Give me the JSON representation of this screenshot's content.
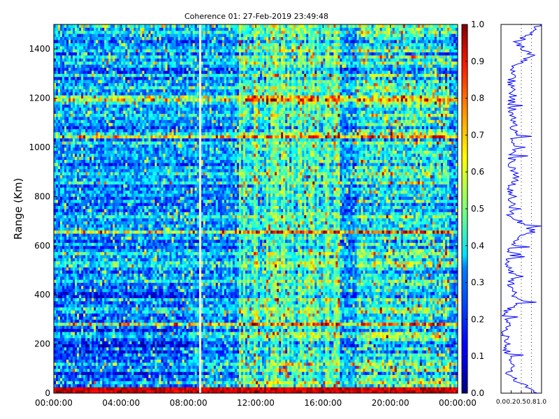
{
  "chart_data": [
    {
      "type": "heatmap",
      "title": "Coherence 01: 27-Feb-2019 23:49:48",
      "xlabel": "",
      "ylabel": "Range (Km)",
      "x_tick_labels": [
        "00:00:00",
        "04:00:00",
        "08:00:00",
        "12:00:00",
        "16:00:00",
        "20:00:00",
        "00:00:00"
      ],
      "x_tick_hours": [
        0,
        4,
        8,
        12,
        16,
        20,
        24
      ],
      "xlim_hours": [
        0,
        24
      ],
      "y_ticks": [
        0,
        200,
        400,
        600,
        800,
        1000,
        1200,
        1400
      ],
      "ylim": [
        0,
        1500
      ],
      "colormap": "jet",
      "colorbar": {
        "ticks": [
          0.0,
          0.1,
          0.2,
          0.3,
          0.4,
          0.5,
          0.6,
          0.7,
          0.8,
          0.9,
          1.0
        ],
        "tick_labels": [
          "0.0",
          "0.1",
          "0.2",
          "0.3",
          "0.4",
          "0.5",
          "0.6",
          "0.7",
          "0.8",
          "0.9",
          "1.0"
        ],
        "range": [
          0.0,
          1.0
        ]
      },
      "data_gap_hour": 8.7,
      "high_coherence_range_km": [
        0,
        25
      ],
      "high_coherence_band_km": [
        280,
        660,
        1040,
        1200
      ],
      "grid": false
    },
    {
      "type": "line",
      "title": "",
      "xlabel": "",
      "ylabel": "",
      "x_tick_labels": [
        "0.0",
        "0.2",
        "0.5",
        "0.8",
        "1.0"
      ],
      "x_ticks": [
        0.0,
        0.25,
        0.5,
        0.75,
        1.0
      ],
      "xlim": [
        0.0,
        1.0
      ],
      "ylim": [
        0,
        1500
      ],
      "color": "#0000ff",
      "dotted_gridlines_x": [
        0.5,
        0.75
      ],
      "profile": [
        {
          "range_km": 0,
          "coherence": 0.95
        },
        {
          "range_km": 25,
          "coherence": 0.6
        },
        {
          "range_km": 75,
          "coherence": 0.2
        },
        {
          "range_km": 125,
          "coherence": 0.3
        },
        {
          "range_km": 175,
          "coherence": 0.15
        },
        {
          "range_km": 225,
          "coherence": 0.1
        },
        {
          "range_km": 275,
          "coherence": 0.15
        },
        {
          "range_km": 325,
          "coherence": 0.1
        },
        {
          "range_km": 375,
          "coherence": 0.45
        },
        {
          "range_km": 425,
          "coherence": 0.25
        },
        {
          "range_km": 475,
          "coherence": 0.3
        },
        {
          "range_km": 525,
          "coherence": 0.2
        },
        {
          "range_km": 575,
          "coherence": 0.25
        },
        {
          "range_km": 625,
          "coherence": 0.35
        },
        {
          "range_km": 660,
          "coherence": 0.8
        },
        {
          "range_km": 725,
          "coherence": 0.2
        },
        {
          "range_km": 775,
          "coherence": 0.3
        },
        {
          "range_km": 825,
          "coherence": 0.25
        },
        {
          "range_km": 875,
          "coherence": 0.35
        },
        {
          "range_km": 925,
          "coherence": 0.25
        },
        {
          "range_km": 975,
          "coherence": 0.3
        },
        {
          "range_km": 1025,
          "coherence": 0.35
        },
        {
          "range_km": 1075,
          "coherence": 0.3
        },
        {
          "range_km": 1125,
          "coherence": 0.3
        },
        {
          "range_km": 1175,
          "coherence": 0.25
        },
        {
          "range_km": 1225,
          "coherence": 0.3
        },
        {
          "range_km": 1275,
          "coherence": 0.25
        },
        {
          "range_km": 1325,
          "coherence": 0.3
        },
        {
          "range_km": 1375,
          "coherence": 0.8
        },
        {
          "range_km": 1425,
          "coherence": 0.35
        },
        {
          "range_km": 1475,
          "coherence": 0.9
        }
      ]
    }
  ]
}
